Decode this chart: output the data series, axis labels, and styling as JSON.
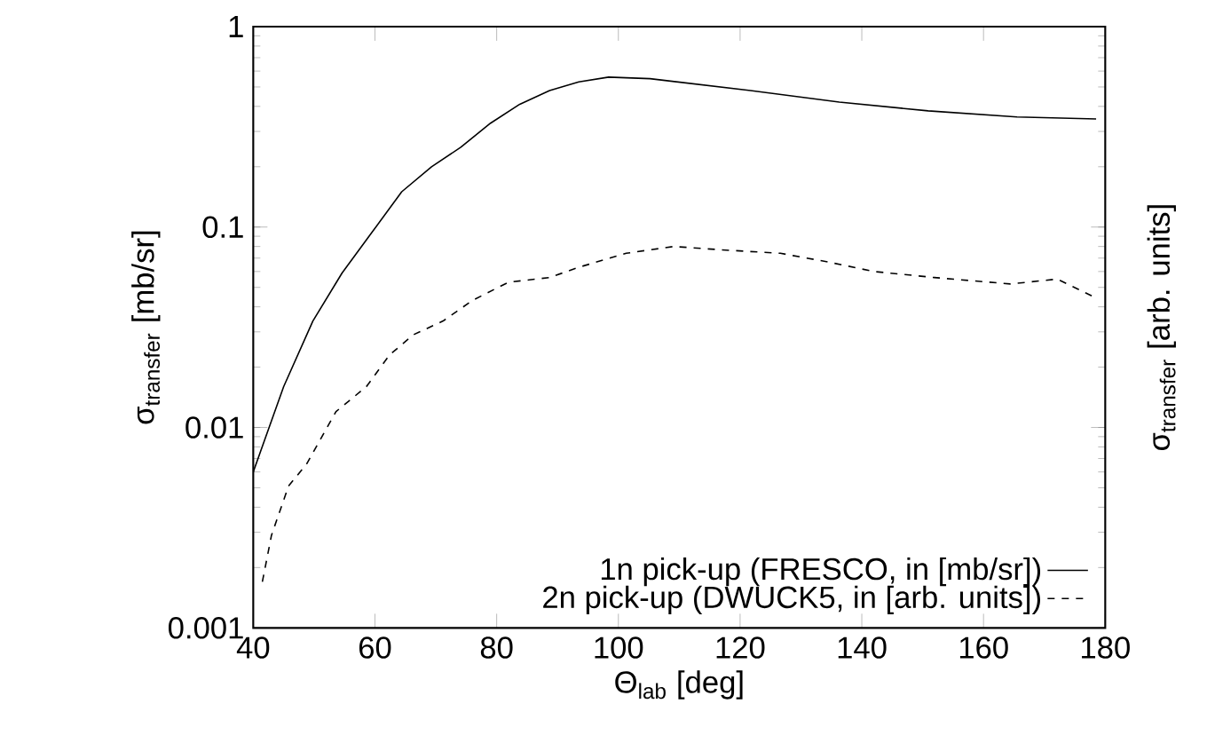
{
  "chart_data": {
    "type": "line",
    "xlabel": "Θ$_{lab}$ [deg]",
    "ylabel": "σ$_{transfer}$ [mb/sr]",
    "y2label": "σ$_{transfer}$ [arb. units]",
    "log": "y",
    "xlim": [
      40,
      180
    ],
    "ylim": [
      0.001,
      1
    ],
    "xticks": [
      40,
      60,
      80,
      100,
      120,
      140,
      160,
      180
    ],
    "yticks": [
      0.001,
      0.01,
      0.1,
      1
    ],
    "grid": false,
    "legend": "bottom right",
    "marker": "none",
    "series": [
      {
        "name": "1n pick-up (FRESCO, in [mb/sr])",
        "color": "#000000",
        "line_style": "solid",
        "x": [
          40,
          45,
          49.8,
          54.6,
          59.5,
          64.4,
          69.3,
          74.1,
          79,
          83.8,
          88.7,
          93.5,
          98.4,
          105.2,
          121.7,
          136.3,
          150.9,
          165.5,
          178.5
        ],
        "values": [
          0.006,
          0.016,
          0.034,
          0.059,
          0.094,
          0.15,
          0.2,
          0.25,
          0.33,
          0.41,
          0.48,
          0.53,
          0.56,
          0.55,
          0.48,
          0.42,
          0.38,
          0.354,
          0.346
        ]
      },
      {
        "name": "2n pick-up (DWUCK5, in [arb. units])",
        "color": "#000000",
        "line_style": "dashed",
        "x": [
          41.5,
          43,
          45.8,
          48.8,
          53.6,
          58.6,
          62.4,
          66.3,
          71.2,
          76,
          81.9,
          88.7,
          93.5,
          101.3,
          109.1,
          116.9,
          126.6,
          134.4,
          142,
          151.9,
          164.4,
          172.1,
          178
        ],
        "values": [
          0.0017,
          0.0029,
          0.0051,
          0.0066,
          0.012,
          0.016,
          0.023,
          0.029,
          0.034,
          0.043,
          0.053,
          0.056,
          0.063,
          0.074,
          0.08,
          0.077,
          0.074,
          0.067,
          0.06,
          0.056,
          0.052,
          0.055,
          0.045
        ]
      }
    ]
  }
}
